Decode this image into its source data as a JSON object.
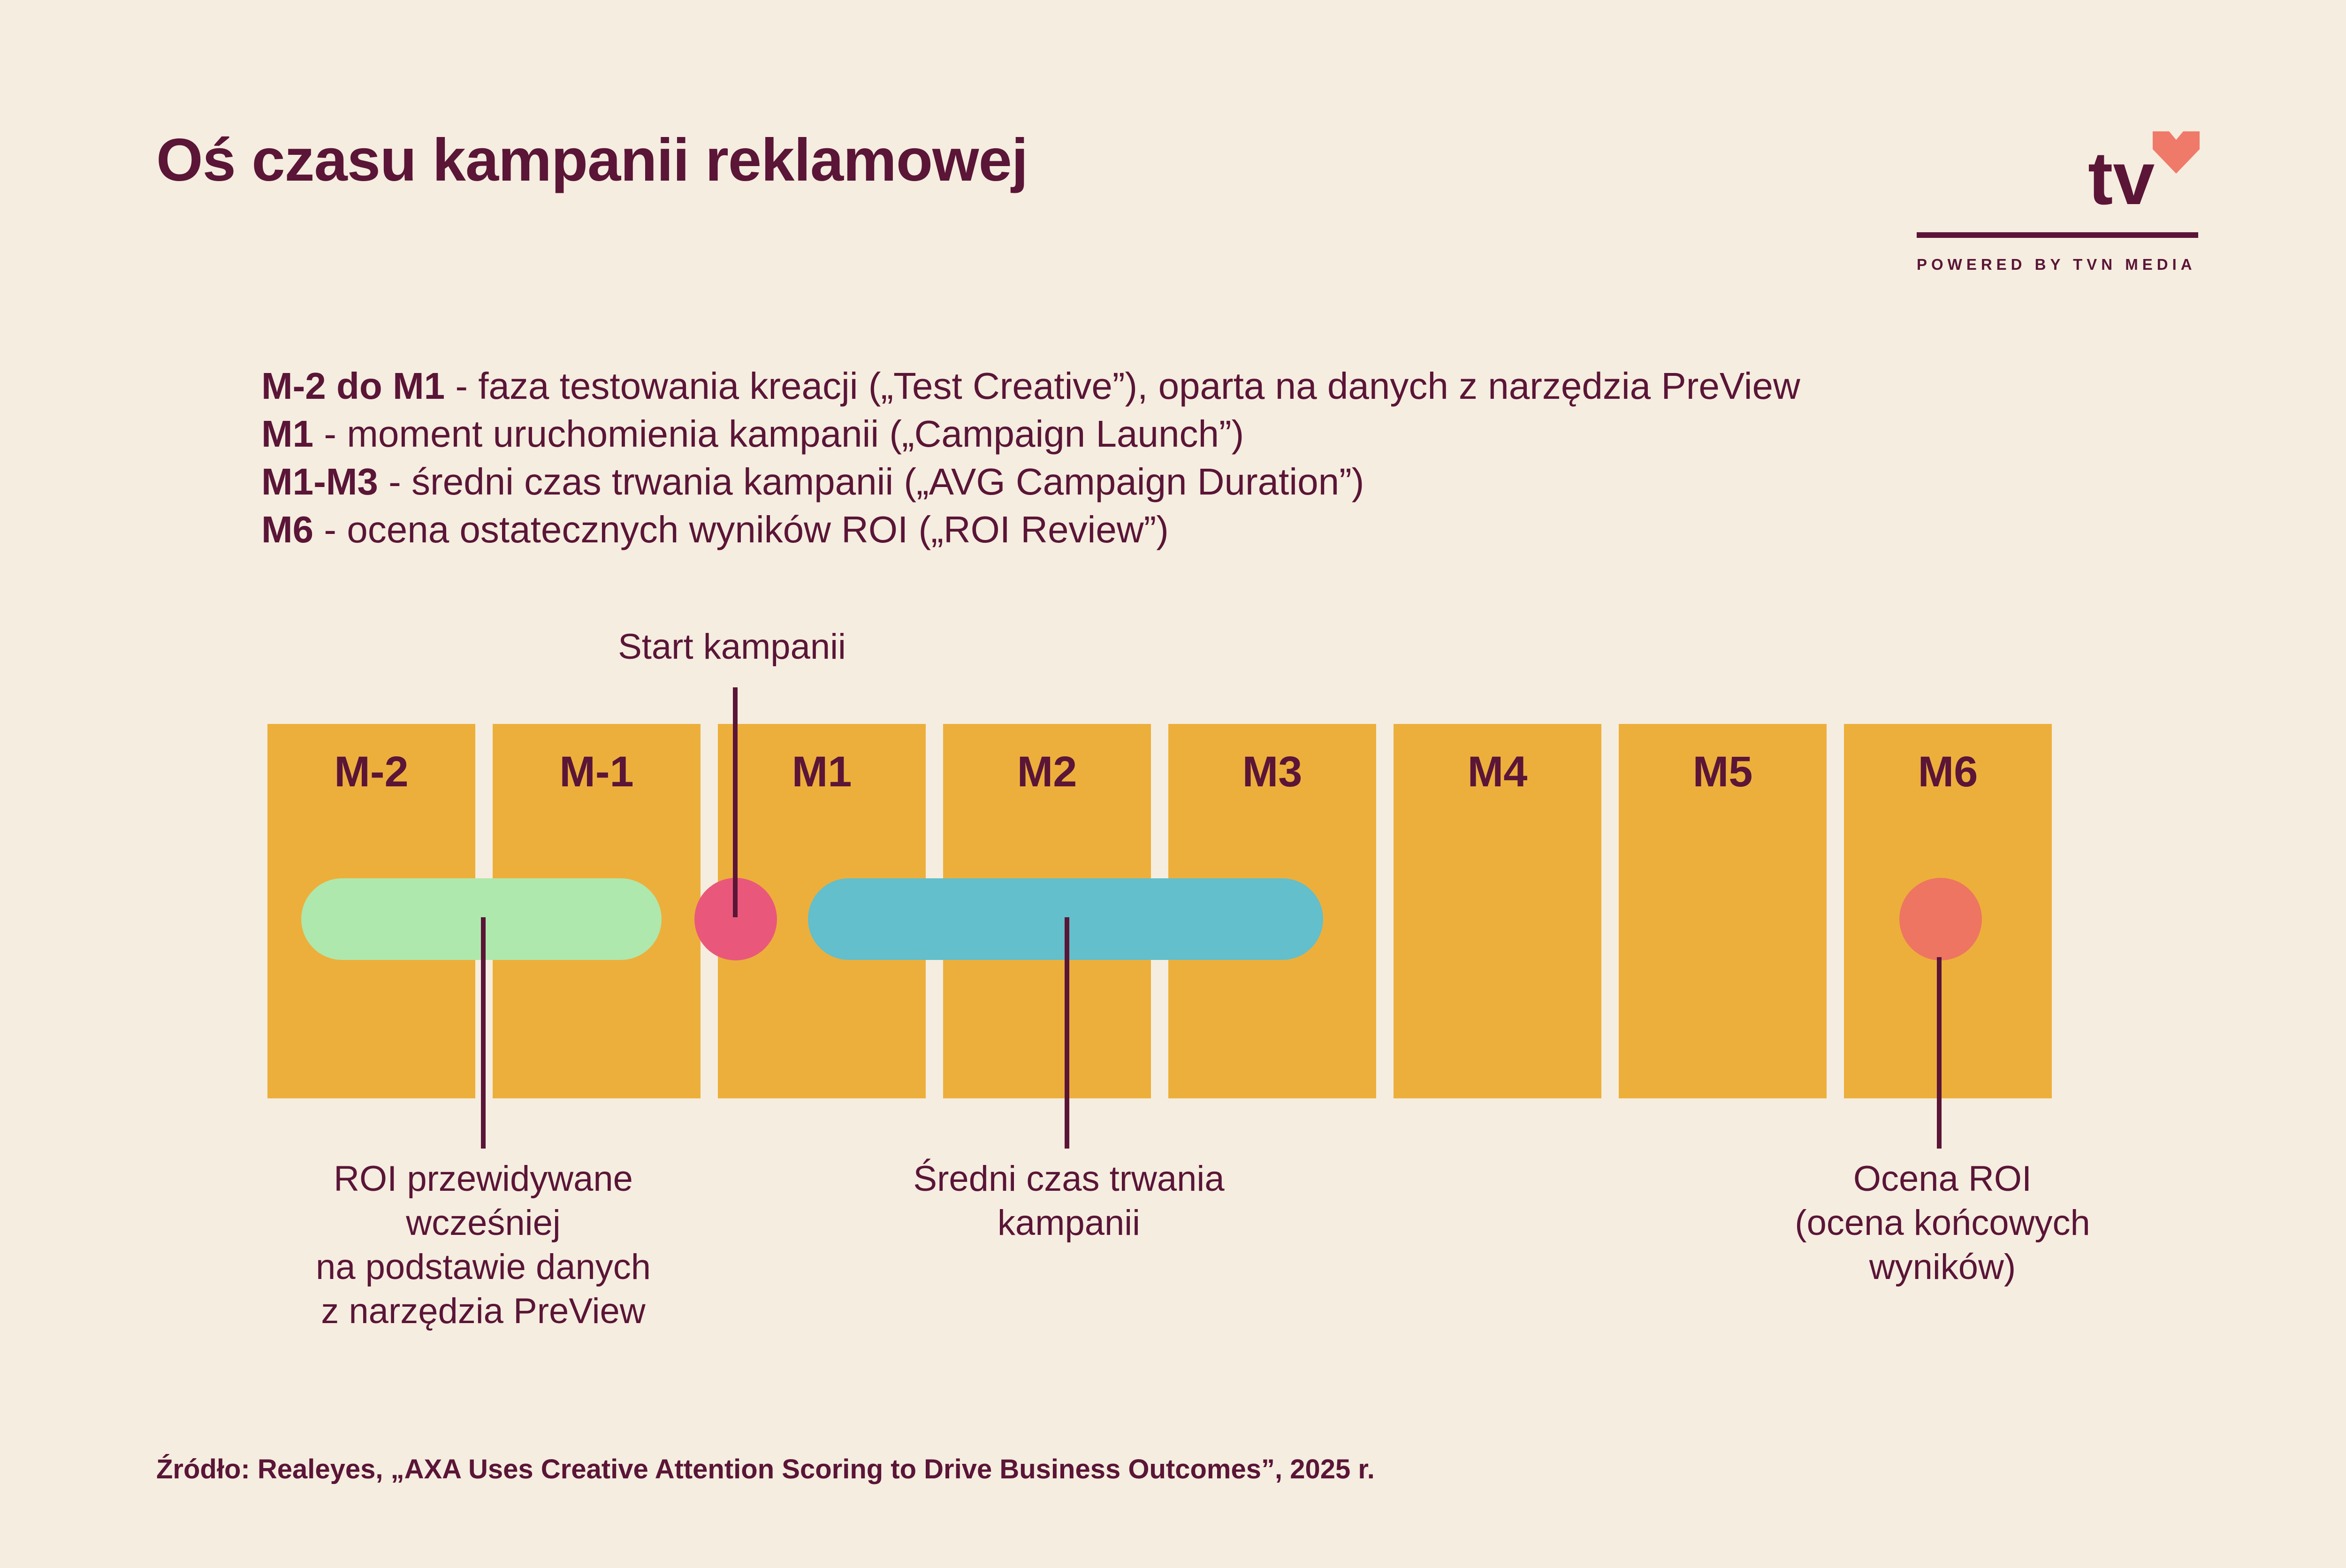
{
  "title": "Oś czasu kampanii reklamowej",
  "logo": {
    "text": "tv",
    "tagline": "POWERED BY TVN MEDIA"
  },
  "legend": [
    {
      "key": "M-2 do M1",
      "desc": " - faza testowania kreacji („Test Creative”), oparta na danych z narzędzia PreView"
    },
    {
      "key": "M1",
      "desc": " - moment uruchomienia kampanii („Campaign Launch”)"
    },
    {
      "key": "M1-M3",
      "desc": " - średni czas trwania kampanii („AVG Campaign Duration”)"
    },
    {
      "key": "M6",
      "desc": " - ocena ostatecznych wyników ROI („ROI Review”)"
    }
  ],
  "start_label": "Start kampanii",
  "months": [
    "M-2",
    "M-1",
    "M1",
    "M2",
    "M3",
    "M4",
    "M5",
    "M6"
  ],
  "callouts": {
    "roi_predicted": [
      "ROI przewidywane",
      "wcześniej",
      "na podstawie danych",
      "z narzędzia PreView"
    ],
    "avg_duration": [
      "Średni czas trwania",
      "kampanii"
    ],
    "roi_review": [
      "Ocena ROI",
      "(ocena końcowych",
      "wyników)"
    ]
  },
  "source": "Źródło: Realeyes, „AXA Uses Creative Attention Scoring to Drive Business Outcomes”, 2025 r.",
  "colors": {
    "background": "#F5EDDF",
    "text": "#5A1537",
    "month_block": "#EDAF3B",
    "test_phase_bar": "#AEE8AC",
    "campaign_bar": "#62BFCB",
    "launch_dot": "#E9587A",
    "review_dot": "#ED7562",
    "logo_heart": "#F07A6A"
  },
  "icons": {
    "logo_heart": "heart-icon"
  }
}
